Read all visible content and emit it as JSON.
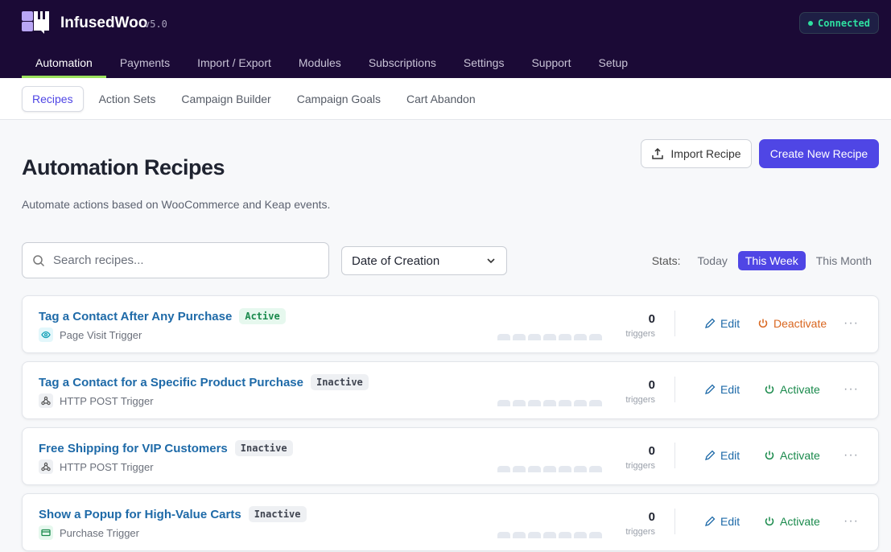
{
  "header": {
    "brand": "InfusedWoo",
    "version": "v5.0",
    "status": "Connected",
    "nav": [
      "Automation",
      "Payments",
      "Import / Export",
      "Modules",
      "Subscriptions",
      "Settings",
      "Support",
      "Setup"
    ],
    "active_nav": 0
  },
  "subnav": {
    "items": [
      "Recipes",
      "Action Sets",
      "Campaign Builder",
      "Campaign Goals",
      "Cart Abandon"
    ],
    "active": 0
  },
  "page": {
    "title": "Automation Recipes",
    "description": "Automate actions based on WooCommerce and Keap events.",
    "import_label": "Import Recipe",
    "create_label": "Create New Recipe"
  },
  "filters": {
    "search_placeholder": "Search recipes...",
    "sort_value": "Date of Creation",
    "stats_label": "Stats:",
    "stats_options": [
      "Today",
      "This Week",
      "This Month"
    ],
    "stats_active": 1
  },
  "colors": {
    "accent": "#4f46e5",
    "header": "#1b0a36",
    "deactivate": "#d9661f",
    "activate": "#1a8a4c"
  },
  "recipes": [
    {
      "title": "Tag a Contact After Any Purchase",
      "status": "Active",
      "trigger": "Page Visit Trigger",
      "trigger_icon": "eye-icon",
      "count": "0",
      "count_label": "triggers",
      "edit": "Edit",
      "toggle": "Deactivate"
    },
    {
      "title": "Tag a Contact for a Specific Product Purchase",
      "status": "Inactive",
      "trigger": "HTTP POST Trigger",
      "trigger_icon": "webhook-icon",
      "count": "0",
      "count_label": "triggers",
      "edit": "Edit",
      "toggle": "Activate"
    },
    {
      "title": "Free Shipping for VIP Customers",
      "status": "Inactive",
      "trigger": "HTTP POST Trigger",
      "trigger_icon": "webhook-icon",
      "count": "0",
      "count_label": "triggers",
      "edit": "Edit",
      "toggle": "Activate"
    },
    {
      "title": "Show a Popup for High-Value Carts",
      "status": "Inactive",
      "trigger": "Purchase Trigger",
      "trigger_icon": "credit-card-icon",
      "count": "0",
      "count_label": "triggers",
      "edit": "Edit",
      "toggle": "Activate"
    }
  ]
}
